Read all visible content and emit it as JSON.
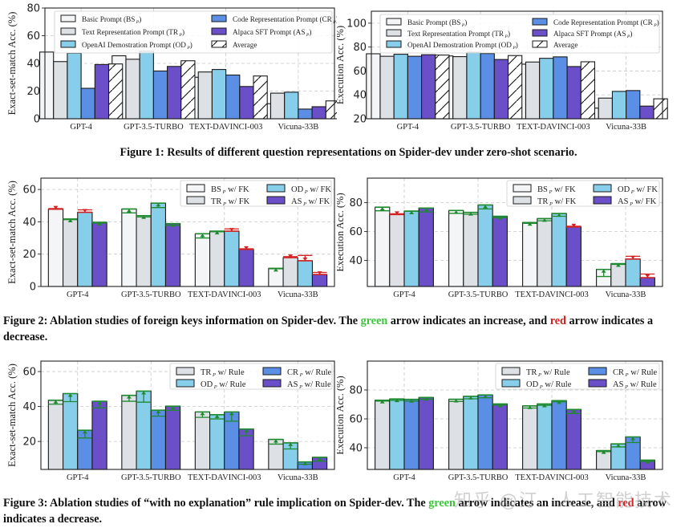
{
  "captions": {
    "fig1": "Figure 1: Results of different question representations on Spider-dev under zero-shot scenario.",
    "fig2_a": "Figure 2: Ablation studies of foreign keys information on Spider-dev. The ",
    "fig2_green": "green",
    "fig2_b": " arrow indicates an increase, and ",
    "fig2_red": "red",
    "fig2_c": " arrow indicates a decrease.",
    "fig3_a": "Figure 3: Ablation studies of “with no explanation” rule implication on Spider-dev. The ",
    "fig3_green": "green",
    "fig3_b": " arrow indicates an increase, and ",
    "fig3_red": "red",
    "fig3_c": " arrow indicates a decrease."
  },
  "watermark": "知乎 @汀、人工智能技术",
  "colors": {
    "BS": "#f4f5f7",
    "TR": "#dde1e5",
    "OD": "#87ceeb",
    "CR": "#5b8fe6",
    "AS": "#6a4fc8",
    "AVG": "#ffffff",
    "up": "#1e8a2e",
    "down": "#d42020",
    "grid": "#c8c8c8"
  },
  "chart_data": [
    {
      "id": "fig1-left",
      "type": "bar",
      "ylabel": "Exact-set-match Acc. (%)",
      "ylim": [
        0,
        80
      ],
      "yticks": [
        0,
        20,
        40,
        60,
        80
      ],
      "categories": [
        "GPT-4",
        "GPT-3.5-TURBO",
        "TEXT-DAVINCI-003",
        "Vicuna-33B"
      ],
      "legend_placement": "top",
      "legend_cols": 2,
      "series": [
        {
          "key": "BS",
          "name": "Basic Prompt (BS",
          "sub": "P",
          "values": [
            48.2,
            45.5,
            30.0,
            10.9
          ]
        },
        {
          "key": "TR",
          "name": "Text Representation Prompt (TR",
          "sub": "P",
          "values": [
            41.3,
            43.0,
            33.8,
            18.5
          ]
        },
        {
          "key": "OD",
          "name": "OpenAI Demostration Prompt (OD",
          "sub": "P",
          "values": [
            47.4,
            48.8,
            35.6,
            19.2
          ]
        },
        {
          "key": "CR",
          "name": "Code Representation Prompt (CR",
          "sub": "P",
          "values": [
            22.0,
            34.5,
            31.6,
            7.0
          ]
        },
        {
          "key": "AS",
          "name": "Alpaca SFT Prompt (AS",
          "sub": "P",
          "values": [
            39.2,
            37.8,
            23.3,
            8.7
          ]
        },
        {
          "key": "AVG",
          "name": "Average",
          "sub": "",
          "values": [
            39.6,
            41.9,
            30.9,
            12.9
          ],
          "hatch": true
        }
      ]
    },
    {
      "id": "fig1-right",
      "type": "bar",
      "ylabel": "Execution Acc. (%)",
      "ylim": [
        20,
        110
      ],
      "yticks": [
        20,
        40,
        60,
        80,
        100
      ],
      "categories": [
        "GPT-4",
        "GPT-3.5-TURBO",
        "TEXT-DAVINCI-003",
        "Vicuna-33B"
      ],
      "legend_placement": "top",
      "legend_cols": 2,
      "series": [
        {
          "key": "BS",
          "name": "Basic Prompt (BS",
          "sub": "P",
          "values": [
            74.4,
            72.6,
            65.7,
            28.9
          ]
        },
        {
          "key": "TR",
          "name": "Text Representation Prompt (TR",
          "sub": "P",
          "values": [
            72.3,
            72.0,
            67.5,
            37.3
          ]
        },
        {
          "key": "OD",
          "name": "OpenAI Demostration Prompt (OD",
          "sub": "P",
          "values": [
            74.0,
            75.7,
            70.6,
            42.9
          ]
        },
        {
          "key": "CR",
          "name": "Code Representation Prompt (CR",
          "sub": "P",
          "values": [
            72.3,
            74.6,
            71.8,
            43.6
          ]
        },
        {
          "key": "AS",
          "name": "Alpaca SFT Prompt (AS",
          "sub": "P",
          "values": [
            73.6,
            69.6,
            63.7,
            30.6
          ]
        },
        {
          "key": "AVG",
          "name": "Average",
          "sub": "",
          "values": [
            73.3,
            72.9,
            67.7,
            36.7
          ],
          "hatch": true
        }
      ]
    },
    {
      "id": "fig2-left",
      "type": "bar",
      "ylabel": "Exact-set-match Acc. (%)",
      "ylim": [
        0,
        67
      ],
      "yticks": [
        0,
        20,
        40,
        60
      ],
      "categories": [
        "GPT-4",
        "GPT-3.5-TURBO",
        "TEXT-DAVINCI-003",
        "Vicuna-33B"
      ],
      "legend_placement": "top-right",
      "legend_cols": 2,
      "series": [
        {
          "key": "BS",
          "name": "BS",
          "sub": "P",
          "suffix": " w/ FK",
          "base": [
            48.2,
            45.5,
            30.0,
            10.9
          ],
          "values": [
            47.8,
            47.9,
            32.6,
            11.2
          ]
        },
        {
          "key": "TR",
          "name": "TR",
          "sub": "P",
          "suffix": " w/ FK",
          "base": [
            41.3,
            43.0,
            33.8,
            18.5
          ],
          "values": [
            41.7,
            43.8,
            34.2,
            17.8
          ]
        },
        {
          "key": "OD",
          "name": "OD",
          "sub": "P",
          "suffix": " w/ FK",
          "base": [
            47.4,
            48.8,
            35.6,
            19.2
          ],
          "values": [
            45.9,
            51.5,
            34.2,
            15.9
          ]
        },
        {
          "key": "AS",
          "name": "AS",
          "sub": "P",
          "suffix": " w/ FK",
          "base": [
            39.2,
            37.8,
            23.3,
            8.7
          ],
          "values": [
            39.7,
            38.9,
            22.9,
            7.4
          ]
        }
      ]
    },
    {
      "id": "fig2-right",
      "type": "bar",
      "ylabel": "Execution Acc. (%)",
      "ylim": [
        22,
        97
      ],
      "yticks": [
        40,
        60,
        80
      ],
      "categories": [
        "GPT-4",
        "GPT-3.5-TURBO",
        "TEXT-DAVINCI-003",
        "Vicuna-33B"
      ],
      "legend_placement": "top-right",
      "legend_cols": 2,
      "series": [
        {
          "key": "BS",
          "name": "BS",
          "sub": "P",
          "suffix": " w/ FK",
          "base": [
            74.4,
            72.6,
            65.7,
            28.9
          ],
          "values": [
            76.9,
            74.6,
            66.3,
            33.8
          ]
        },
        {
          "key": "TR",
          "name": "TR",
          "sub": "P",
          "suffix": " w/ FK",
          "base": [
            72.3,
            72.0,
            67.5,
            37.3
          ],
          "values": [
            71.8,
            73.3,
            69.0,
            37.8
          ]
        },
        {
          "key": "OD",
          "name": "OD",
          "sub": "P",
          "suffix": " w/ FK",
          "base": [
            74.0,
            75.7,
            70.6,
            42.9
          ],
          "values": [
            74.2,
            78.4,
            72.5,
            41.0
          ]
        },
        {
          "key": "AS",
          "name": "AS",
          "sub": "P",
          "suffix": " w/ FK",
          "base": [
            73.6,
            69.6,
            63.7,
            30.6
          ],
          "values": [
            76.3,
            70.6,
            63.2,
            28.1
          ]
        }
      ]
    },
    {
      "id": "fig3-left",
      "type": "bar",
      "ylabel": "Exact-set-match Acc. (%)",
      "ylim": [
        4,
        66
      ],
      "yticks": [
        20,
        40,
        60
      ],
      "categories": [
        "GPT-4",
        "GPT-3.5-TURBO",
        "TEXT-DAVINCI-003",
        "Vicuna-33B"
      ],
      "legend_placement": "top-right",
      "legend_cols": 2,
      "series": [
        {
          "key": "TR",
          "name": "TR",
          "sub": "P",
          "suffix": " w/ Rule",
          "base": [
            41.3,
            43.0,
            33.8,
            18.5
          ],
          "values": [
            43.6,
            46.4,
            36.9,
            21.2
          ]
        },
        {
          "key": "OD",
          "name": "OD",
          "sub": "P",
          "suffix": " w/ Rule",
          "base": [
            42.8,
            42.5,
            32.9,
            15.7
          ],
          "values": [
            47.4,
            48.8,
            35.3,
            19.2
          ]
        },
        {
          "key": "CR",
          "name": "CR",
          "sub": "P",
          "suffix": " w/ Rule",
          "base": [
            22.0,
            34.5,
            31.6,
            7.0
          ],
          "values": [
            26.4,
            37.9,
            36.9,
            8.3
          ]
        },
        {
          "key": "AS",
          "name": "AS",
          "sub": "P",
          "suffix": " w/ Rule",
          "base": [
            39.2,
            37.8,
            23.3,
            8.7
          ],
          "values": [
            43.0,
            40.2,
            27.1,
            10.9
          ]
        }
      ]
    },
    {
      "id": "fig3-right",
      "type": "bar",
      "ylabel": "Execution Acc. (%)",
      "ylim": [
        25,
        100
      ],
      "yticks": [
        40,
        60,
        80
      ],
      "categories": [
        "GPT-4",
        "GPT-3.5-TURBO",
        "TEXT-DAVINCI-003",
        "Vicuna-33B"
      ],
      "legend_placement": "top-right",
      "legend_cols": 2,
      "series": [
        {
          "key": "TR",
          "name": "TR",
          "sub": "P",
          "suffix": " w/ Rule",
          "base": [
            72.3,
            72.0,
            67.5,
            37.3
          ],
          "values": [
            72.9,
            73.6,
            69.0,
            38.0
          ]
        },
        {
          "key": "OD",
          "name": "OD",
          "sub": "P",
          "suffix": " w/ Rule",
          "base": [
            72.8,
            73.9,
            69.4,
            40.6
          ],
          "values": [
            73.8,
            75.6,
            70.3,
            42.7
          ]
        },
        {
          "key": "CR",
          "name": "CR",
          "sub": "P",
          "suffix": " w/ Rule",
          "base": [
            72.3,
            74.6,
            71.8,
            43.6
          ],
          "values": [
            73.5,
            76.6,
            72.6,
            47.5
          ]
        },
        {
          "key": "AS",
          "name": "AS",
          "sub": "P",
          "suffix": " w/ Rule",
          "base": [
            73.6,
            69.6,
            63.7,
            30.6
          ],
          "values": [
            74.8,
            70.3,
            66.5,
            31.4
          ]
        }
      ]
    }
  ]
}
